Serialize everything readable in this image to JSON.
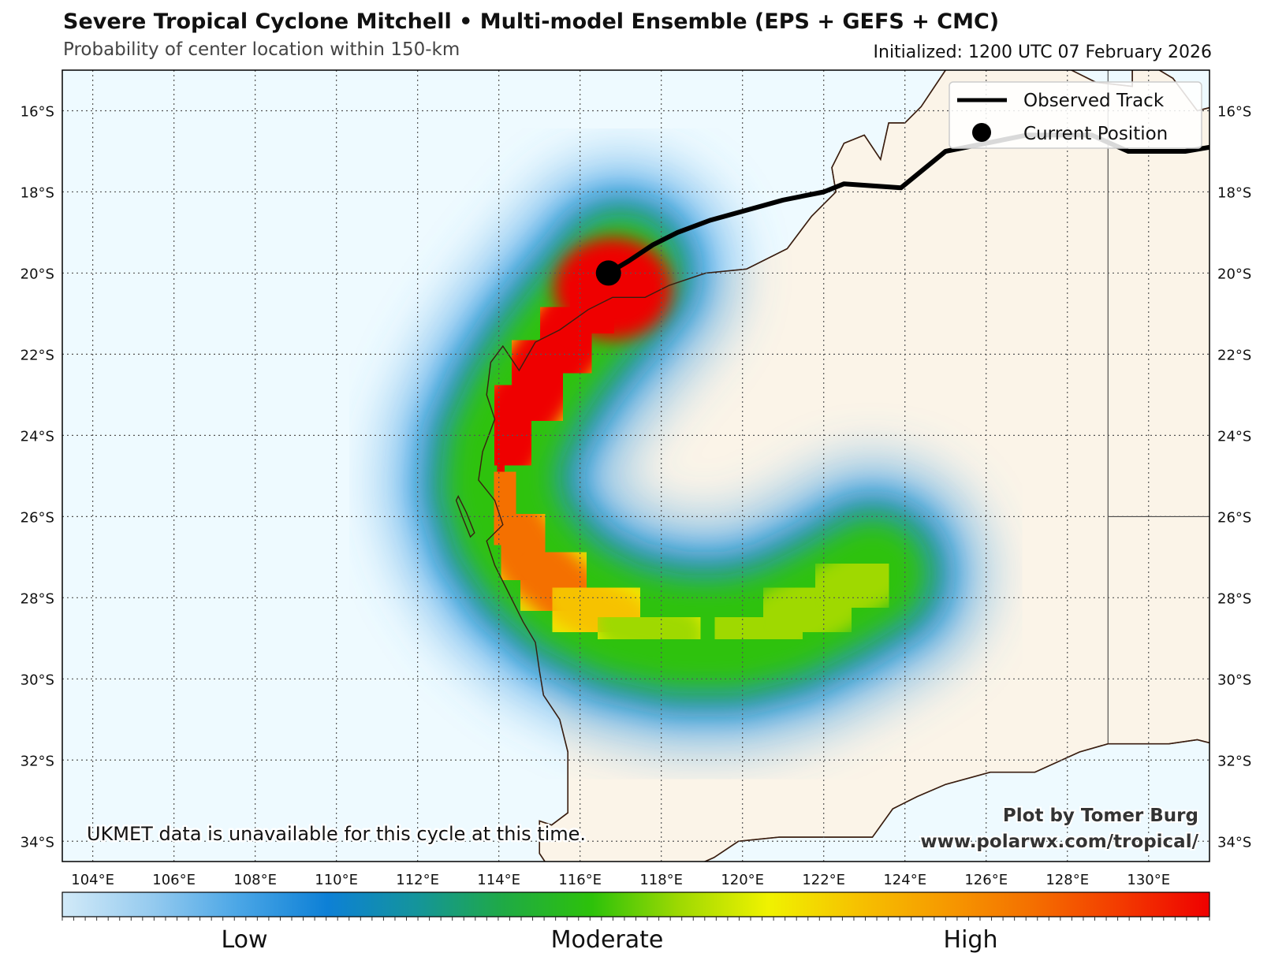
{
  "header": {
    "title": "Severe Tropical Cyclone Mitchell • Multi-model Ensemble (EPS + GEFS + CMC)",
    "subtitle": "Probability of center location within 150-km",
    "initialized": "Initialized: 1200 UTC 07 February 2026"
  },
  "map": {
    "extent": {
      "lon_min": 103.25,
      "lon_max": 131.5,
      "lat_min": -34.5,
      "lat_max": -15.0
    },
    "lon_ticks": [
      {
        "value": 104,
        "label": "104°E"
      },
      {
        "value": 106,
        "label": "106°E"
      },
      {
        "value": 108,
        "label": "108°E"
      },
      {
        "value": 110,
        "label": "110°E"
      },
      {
        "value": 112,
        "label": "112°E"
      },
      {
        "value": 114,
        "label": "114°E"
      },
      {
        "value": 116,
        "label": "116°E"
      },
      {
        "value": 118,
        "label": "118°E"
      },
      {
        "value": 120,
        "label": "120°E"
      },
      {
        "value": 122,
        "label": "122°E"
      },
      {
        "value": 124,
        "label": "124°E"
      },
      {
        "value": 126,
        "label": "126°E"
      },
      {
        "value": 128,
        "label": "128°E"
      },
      {
        "value": 130,
        "label": "130°E"
      }
    ],
    "lat_ticks": [
      {
        "value": -16,
        "label": "16°S"
      },
      {
        "value": -18,
        "label": "18°S"
      },
      {
        "value": -20,
        "label": "20°S"
      },
      {
        "value": -22,
        "label": "22°S"
      },
      {
        "value": -24,
        "label": "24°S"
      },
      {
        "value": -26,
        "label": "26°S"
      },
      {
        "value": -28,
        "label": "28°S"
      },
      {
        "value": -30,
        "label": "30°S"
      },
      {
        "value": -32,
        "label": "32°S"
      },
      {
        "value": -34,
        "label": "34°S"
      }
    ],
    "colors": {
      "ocean": "#eefaff",
      "land": "#fbf4e8",
      "coast": "#3a1e10",
      "grid": "#555555",
      "track": "#000000"
    },
    "observed_track": [
      [
        131.5,
        -16.9
      ],
      [
        130.9,
        -17.0
      ],
      [
        129.5,
        -17.0
      ],
      [
        128.6,
        -16.6
      ],
      [
        127.0,
        -16.6
      ],
      [
        125.0,
        -17.0
      ],
      [
        123.9,
        -17.9
      ],
      [
        122.5,
        -17.8
      ],
      [
        122.0,
        -18.0
      ],
      [
        121.0,
        -18.2
      ],
      [
        119.2,
        -18.7
      ],
      [
        118.4,
        -19.0
      ],
      [
        117.8,
        -19.3
      ],
      [
        117.2,
        -19.7
      ],
      [
        116.7,
        -20.0
      ]
    ],
    "current_position": {
      "lon": 116.7,
      "lat": -20.0
    },
    "probability_swath": [
      {
        "lon": 117.0,
        "lat": -20.0,
        "p": 1.0
      },
      {
        "lon": 116.6,
        "lat": -20.5,
        "p": 0.99
      },
      {
        "lon": 116.0,
        "lat": -21.2,
        "p": 0.97
      },
      {
        "lon": 115.3,
        "lat": -22.1,
        "p": 0.95
      },
      {
        "lon": 114.6,
        "lat": -23.2,
        "p": 0.92
      },
      {
        "lon": 114.1,
        "lat": -24.3,
        "p": 0.88
      },
      {
        "lon": 114.0,
        "lat": -25.3,
        "p": 0.85
      },
      {
        "lon": 114.3,
        "lat": -26.3,
        "p": 0.82
      },
      {
        "lon": 114.9,
        "lat": -27.2,
        "p": 0.78
      },
      {
        "lon": 115.8,
        "lat": -28.0,
        "p": 0.72
      },
      {
        "lon": 117.0,
        "lat": -28.6,
        "p": 0.63
      },
      {
        "lon": 118.4,
        "lat": -28.9,
        "p": 0.53
      },
      {
        "lon": 119.8,
        "lat": -28.9,
        "p": 0.44
      },
      {
        "lon": 121.0,
        "lat": -28.6,
        "p": 0.36
      },
      {
        "lon": 122.2,
        "lat": -28.0,
        "p": 0.28
      },
      {
        "lon": 123.2,
        "lat": -27.4,
        "p": 0.2
      }
    ]
  },
  "legend": {
    "observed_track": "Observed Track",
    "current_position": "Current Position"
  },
  "annotations": {
    "note": "UKMET data is unavailable for this cycle at this time.",
    "credit_line1": "Plot by Tomer Burg",
    "credit_line2": "www.polarwx.com/tropical/"
  },
  "colorbar": {
    "labels": [
      "Low",
      "Moderate",
      "High"
    ],
    "stops": [
      "#d2eaf8",
      "#96cbef",
      "#4aa6e6",
      "#0d80d6",
      "#14949c",
      "#1faa45",
      "#2dc20a",
      "#9fd902",
      "#f0f200",
      "#f6c200",
      "#f69a00",
      "#f46f00",
      "#f33a00",
      "#ef0000"
    ]
  }
}
